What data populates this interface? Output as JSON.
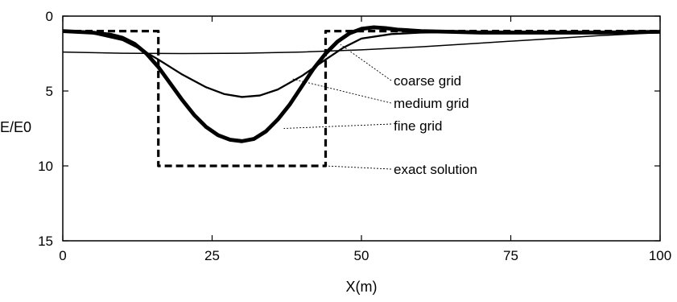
{
  "chart_data": {
    "type": "line",
    "title": "",
    "xlabel": "X(m)",
    "ylabel": "E/E0",
    "xlim": [
      0,
      100
    ],
    "ylim": [
      15,
      0
    ],
    "y_axis_inverted": true,
    "grid": false,
    "x_ticks": [
      "0",
      "25",
      "50",
      "75",
      "100"
    ],
    "y_ticks": [
      "0",
      "5",
      "10",
      "15"
    ],
    "series": [
      {
        "name": "exact solution",
        "style": "dashed",
        "color": "#000000",
        "x": [
          0,
          16,
          16,
          44,
          44,
          100
        ],
        "y": [
          1,
          1,
          10,
          10,
          1,
          1
        ]
      },
      {
        "name": "coarse grid",
        "style": "thin",
        "color": "#000000",
        "x": [
          0,
          10,
          20,
          30,
          40,
          50,
          60,
          70,
          80,
          90,
          100
        ],
        "y": [
          2.4,
          2.48,
          2.5,
          2.48,
          2.4,
          2.25,
          2.05,
          1.8,
          1.55,
          1.3,
          1.1
        ]
      },
      {
        "name": "medium grid",
        "style": "medium",
        "color": "#000000",
        "x": [
          0,
          5,
          10,
          13,
          16,
          20,
          24,
          27,
          30,
          33,
          36,
          40,
          44,
          47,
          50,
          55,
          60,
          70,
          80,
          90,
          100
        ],
        "y": [
          1.05,
          1.15,
          1.6,
          2.2,
          2.9,
          3.9,
          4.75,
          5.2,
          5.4,
          5.3,
          4.9,
          4.0,
          2.9,
          2.1,
          1.5,
          1.2,
          1.1,
          1.05,
          1.05,
          1.05,
          1.05
        ]
      },
      {
        "name": "fine grid",
        "style": "thick",
        "color": "#000000",
        "x": [
          0,
          5,
          8,
          10,
          12,
          14,
          16,
          18,
          20,
          22,
          24,
          26,
          28,
          30,
          32,
          34,
          36,
          38,
          40,
          42,
          44,
          46,
          48,
          50,
          52,
          54,
          56,
          60,
          65,
          70,
          80,
          90,
          100
        ],
        "y": [
          1.0,
          1.1,
          1.25,
          1.45,
          1.85,
          2.5,
          3.4,
          4.5,
          5.6,
          6.6,
          7.4,
          7.95,
          8.25,
          8.35,
          8.2,
          7.7,
          6.9,
          5.9,
          4.7,
          3.5,
          2.5,
          1.7,
          1.15,
          0.85,
          0.75,
          0.8,
          0.9,
          1.0,
          1.05,
          1.1,
          1.1,
          1.1,
          1.05
        ]
      }
    ],
    "annotations": [
      {
        "text": "coarse grid"
      },
      {
        "text": "medium grid"
      },
      {
        "text": "fine grid"
      },
      {
        "text": "exact solution"
      }
    ]
  }
}
